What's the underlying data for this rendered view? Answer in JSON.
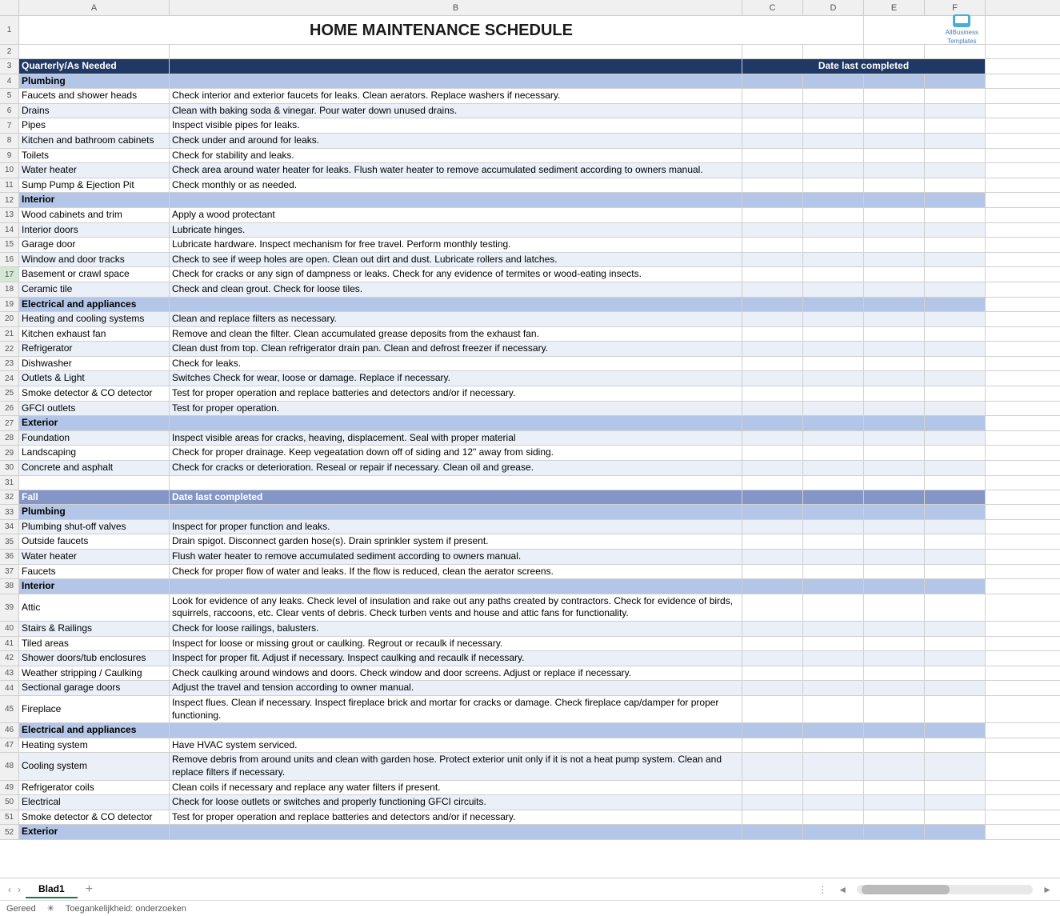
{
  "title": "HOME MAINTENANCE SCHEDULE",
  "logo_text": "AllBusiness\nTemplates",
  "columns": {
    "A": "A",
    "B": "B",
    "C": "C",
    "D": "D",
    "E": "E",
    "F": "F"
  },
  "col_widths": {
    "A": 188,
    "B": 716,
    "C": 76,
    "D": 76,
    "E": 76,
    "F": 76
  },
  "rows": [
    {
      "n": 1,
      "type": "title"
    },
    {
      "n": 2,
      "type": "blank2"
    },
    {
      "n": 3,
      "type": "hdr1",
      "a": "Quarterly/As Needed",
      "c": "Date last completed",
      "c_span": 4
    },
    {
      "n": 4,
      "type": "hdr2",
      "a": "Plumbing"
    },
    {
      "n": 5,
      "type": "data",
      "a": "Faucets and shower heads",
      "b": "Check interior and exterior faucets for leaks. Clean aerators. Replace washers if necessary."
    },
    {
      "n": 6,
      "type": "data alt",
      "a": "Drains",
      "b": "Clean with baking soda & vinegar. Pour water down unused drains."
    },
    {
      "n": 7,
      "type": "data",
      "a": "Pipes",
      "b": "Inspect visible pipes for leaks."
    },
    {
      "n": 8,
      "type": "data alt",
      "a": "Kitchen and bathroom cabinets",
      "b": "Check under and around for leaks."
    },
    {
      "n": 9,
      "type": "data",
      "a": "Toilets",
      "b": "Check for stability and leaks."
    },
    {
      "n": 10,
      "type": "data alt",
      "a": "Water heater",
      "b": "Check area around water heater for leaks. Flush water heater to remove accumulated sediment according to owners manual."
    },
    {
      "n": 11,
      "type": "data",
      "a": "Sump Pump & Ejection Pit",
      "b": "Check monthly or as needed."
    },
    {
      "n": 12,
      "type": "hdr2",
      "a": "Interior"
    },
    {
      "n": 13,
      "type": "data",
      "a": "Wood cabinets and trim",
      "b": "Apply a wood protectant"
    },
    {
      "n": 14,
      "type": "data alt",
      "a": "Interior doors",
      "b": "Lubricate hinges."
    },
    {
      "n": 15,
      "type": "data",
      "a": "Garage door",
      "b": "Lubricate hardware. Inspect mechanism for free travel.  Perform monthly testing."
    },
    {
      "n": 16,
      "type": "data alt",
      "a": "Window and door tracks",
      "b": "Check to see if weep holes are open. Clean out dirt and dust. Lubricate rollers and latches."
    },
    {
      "n": 17,
      "type": "data",
      "a": "Basement or crawl space",
      "b": "Check for cracks or any sign of dampness or leaks. Check for any evidence of termites or wood-eating insects.",
      "sel": true
    },
    {
      "n": 18,
      "type": "data alt",
      "a": "Ceramic tile",
      "b": "Check and clean grout. Check for loose tiles."
    },
    {
      "n": 19,
      "type": "hdr2",
      "a": "Electrical and appliances"
    },
    {
      "n": 20,
      "type": "data alt",
      "a": "Heating and cooling systems",
      "b": "Clean and replace filters as necessary."
    },
    {
      "n": 21,
      "type": "data",
      "a": "Kitchen exhaust fan",
      "b": "Remove and clean the filter. Clean accumulated grease deposits from the exhaust fan."
    },
    {
      "n": 22,
      "type": "data alt",
      "a": "Refrigerator",
      "b": "Clean dust from top. Clean refrigerator drain pan. Clean and defrost freezer if necessary."
    },
    {
      "n": 23,
      "type": "data",
      "a": "Dishwasher",
      "b": "Check for leaks."
    },
    {
      "n": 24,
      "type": "data alt",
      "a": "Outlets & Light",
      "b": "Switches Check for wear, loose or damage. Replace if necessary."
    },
    {
      "n": 25,
      "type": "data",
      "a": "Smoke detector & CO detector",
      "b": "Test for proper operation and replace batteries and detectors and/or if necessary."
    },
    {
      "n": 26,
      "type": "data alt",
      "a": "GFCI outlets",
      "b": "Test for proper operation."
    },
    {
      "n": 27,
      "type": "hdr2",
      "a": "Exterior"
    },
    {
      "n": 28,
      "type": "data alt",
      "a": "Foundation",
      "b": "Inspect visible areas for cracks, heaving, displacement.  Seal with proper material"
    },
    {
      "n": 29,
      "type": "data",
      "a": "Landscaping",
      "b": "Check for proper drainage. Keep vegeatation down off of siding and 12\" away from siding."
    },
    {
      "n": 30,
      "type": "data alt",
      "a": "Concrete and asphalt",
      "b": "Check for cracks or deterioration. Reseal or repair if necessary. Clean oil and grease."
    },
    {
      "n": 31,
      "type": "data",
      "a": "",
      "b": ""
    },
    {
      "n": 32,
      "type": "hdr3",
      "a": "Fall",
      "b": "Date last completed"
    },
    {
      "n": 33,
      "type": "hdr2",
      "a": "Plumbing"
    },
    {
      "n": 34,
      "type": "data alt",
      "a": "Plumbing shut-off valves",
      "b": "Inspect for proper function and leaks."
    },
    {
      "n": 35,
      "type": "data",
      "a": "Outside faucets",
      "b": "Drain spigot.  Disconnect garden hose(s).  Drain sprinkler system if present."
    },
    {
      "n": 36,
      "type": "data alt",
      "a": "Water heater",
      "b": "Flush water heater to remove accumulated sediment according to owners manual."
    },
    {
      "n": 37,
      "type": "data",
      "a": "Faucets",
      "b": "Check for proper flow of water and leaks. If the flow is reduced, clean the aerator screens."
    },
    {
      "n": 38,
      "type": "hdr2",
      "a": "Interior"
    },
    {
      "n": 39,
      "type": "data",
      "a": "Attic",
      "b": "Look for evidence of any leaks. Check level of insulation and rake out any paths created by contractors.  Check for evidence of birds, squirrels, raccoons, etc. Clear vents of debris.  Check turben vents and house and attic fans for functionality.",
      "tall": true
    },
    {
      "n": 40,
      "type": "data alt",
      "a": "Stairs & Railings",
      "b": "Check for loose railings, balusters."
    },
    {
      "n": 41,
      "type": "data",
      "a": "Tiled areas",
      "b": "Inspect for loose or missing grout or caulking. Regrout or recaulk if necessary."
    },
    {
      "n": 42,
      "type": "data alt",
      "a": "Shower doors/tub enclosures",
      "b": "Inspect for proper fit. Adjust if necessary. Inspect caulking and recaulk if necessary."
    },
    {
      "n": 43,
      "type": "data",
      "a": "Weather stripping / Caulking",
      "b": "Check caulking around windows and doors. Check window and door screens. Adjust or replace if necessary."
    },
    {
      "n": 44,
      "type": "data alt",
      "a": "Sectional garage doors",
      "b": "Adjust the travel and tension according to owner manual."
    },
    {
      "n": 45,
      "type": "data",
      "a": "Fireplace",
      "b": "Inspect flues. Clean if necessary. Inspect fireplace brick and mortar for cracks or damage.  Check fireplace cap/damper for proper functioning.",
      "tall": true
    },
    {
      "n": 46,
      "type": "hdr2",
      "a": "Electrical and appliances"
    },
    {
      "n": 47,
      "type": "data",
      "a": "Heating system",
      "b": "Have HVAC system serviced."
    },
    {
      "n": 48,
      "type": "data alt",
      "a": "Cooling system",
      "b": "Remove debris from around units and clean with garden hose.  Protect exterior unit only if it is not a heat pump system.  Clean and replace filters if necessary.",
      "tall": true
    },
    {
      "n": 49,
      "type": "data",
      "a": "Refrigerator coils",
      "b": "Clean coils if necessary and replace any water filters if present."
    },
    {
      "n": 50,
      "type": "data alt",
      "a": "Electrical",
      "b": "Check for loose outlets or switches and properly functioning GFCI circuits."
    },
    {
      "n": 51,
      "type": "data",
      "a": "Smoke detector & CO detector",
      "b": "Test for proper operation and replace batteries and detectors and/or if necessary."
    },
    {
      "n": 52,
      "type": "hdr2",
      "a": "Exterior"
    }
  ],
  "sheet_tab": "Blad1",
  "status": {
    "ready": "Gereed",
    "access": "Toegankelijkheid: onderzoeken"
  }
}
